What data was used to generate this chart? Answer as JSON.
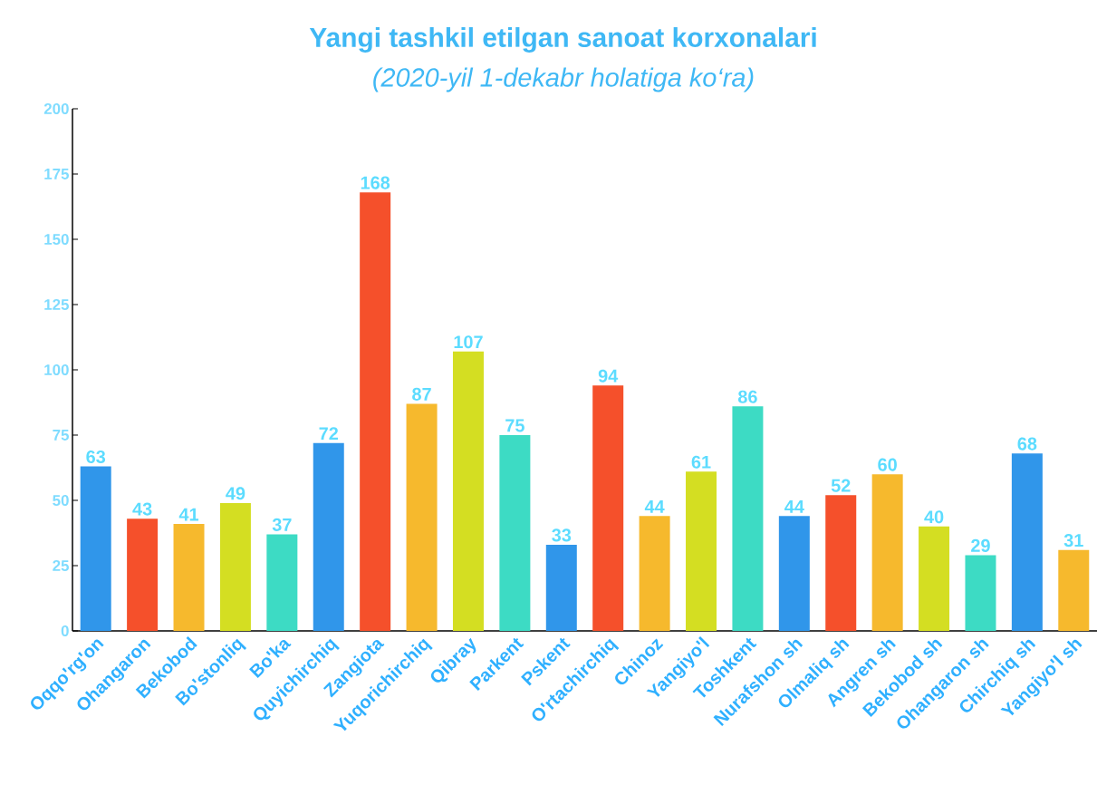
{
  "chart_data": {
    "type": "bar",
    "title": "Yangi tashkil etilgan sanoat korxonalari",
    "subtitle": "(2020-yil 1-dekabr holatiga ko‘ra)",
    "categories": [
      "Oqqo'rg'on",
      "Ohangaron",
      "Bekobod",
      "Bo'stonliq",
      "Bo'ka",
      "Quyichirchiq",
      "Zangiota",
      "Yuqorichirchiq",
      "Qibray",
      "Parkent",
      "Pskent",
      "O'rtachirchiq",
      "Chinoz",
      "Yangiyo'l",
      "Toshkent",
      "Nurafshon sh",
      "Olmaliq sh",
      "Angren sh",
      "Bekobod sh",
      "Ohangaron sh",
      "Chirchiq sh",
      "Yangiyo'l sh"
    ],
    "values": [
      63,
      43,
      41,
      49,
      37,
      72,
      168,
      87,
      107,
      75,
      33,
      94,
      44,
      61,
      86,
      44,
      52,
      60,
      40,
      29,
      68,
      31
    ],
    "colors": [
      "#3096ea",
      "#f5502b",
      "#f6b92d",
      "#d4de22",
      "#3ddbc4",
      "#3096ea",
      "#f5502b",
      "#f6b92d",
      "#d4de22",
      "#3ddbc4",
      "#3096ea",
      "#f5502b",
      "#f6b92d",
      "#d4de22",
      "#3ddbc4",
      "#3096ea",
      "#f5502b",
      "#f6b92d",
      "#d4de22",
      "#3ddbc4",
      "#3096ea",
      "#f6b92d"
    ],
    "ylim": [
      0,
      200
    ],
    "yticks": [
      0,
      25,
      50,
      75,
      100,
      125,
      150,
      175,
      200
    ],
    "data_labels": true
  }
}
